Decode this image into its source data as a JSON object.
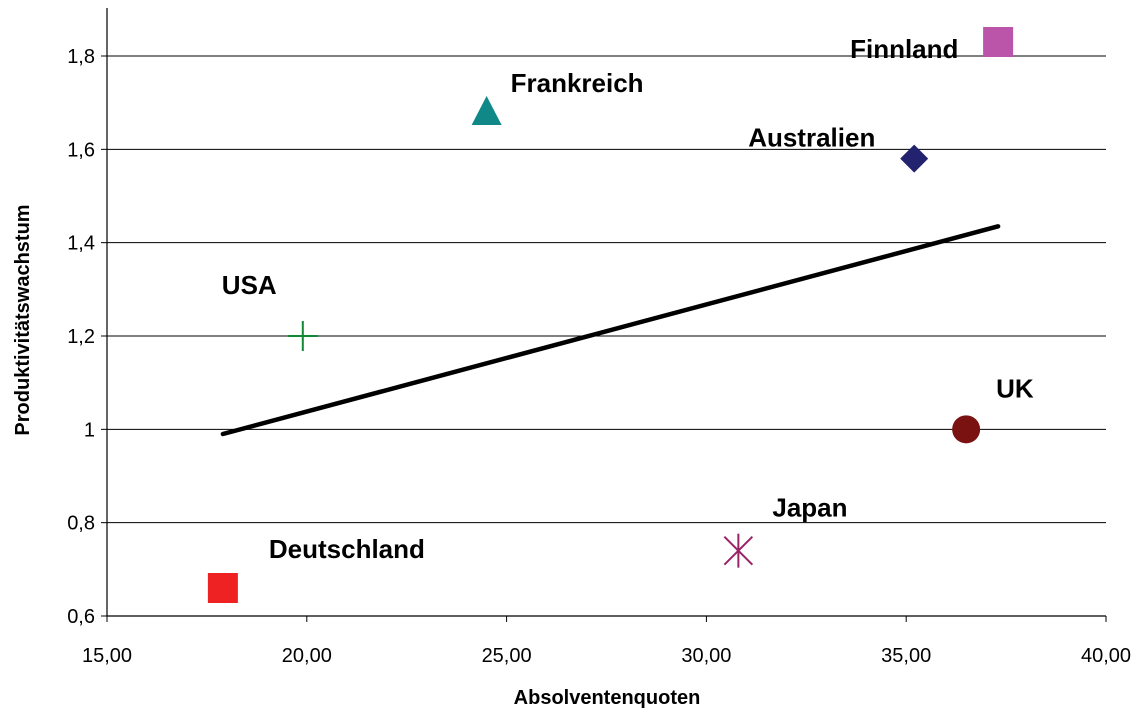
{
  "chart_data": {
    "type": "scatter",
    "title": "",
    "xlabel": "Absolventenquoten",
    "ylabel": "Produktivitätswachstum",
    "xlim": [
      15,
      40
    ],
    "ylim": [
      0.6,
      1.9
    ],
    "x_ticks": [
      15,
      20,
      25,
      30,
      35,
      40
    ],
    "x_tick_labels": [
      "15,00",
      "20,00",
      "25,00",
      "30,00",
      "35,00",
      "40,00"
    ],
    "y_ticks": [
      0.6,
      0.8,
      1.0,
      1.2,
      1.4,
      1.6,
      1.8
    ],
    "y_tick_labels": [
      "0,6",
      "0,8",
      "1",
      "1,2",
      "1,4",
      "1,6",
      "1,8"
    ],
    "grid": "horizontal",
    "legend": "none",
    "points": [
      {
        "label": "Finnland",
        "x": 37.3,
        "y": 1.83,
        "marker": "square",
        "color": "#bb55aa"
      },
      {
        "label": "Frankreich",
        "x": 24.5,
        "y": 1.68,
        "marker": "triangle",
        "color": "#118888"
      },
      {
        "label": "Australien",
        "x": 35.2,
        "y": 1.58,
        "marker": "diamond",
        "color": "#22226e"
      },
      {
        "label": "USA",
        "x": 19.9,
        "y": 1.2,
        "marker": "plus",
        "color": "#118833"
      },
      {
        "label": "UK",
        "x": 36.5,
        "y": 1.0,
        "marker": "circle",
        "color": "#7a1212"
      },
      {
        "label": "Japan",
        "x": 30.8,
        "y": 0.74,
        "marker": "asterisk",
        "color": "#992266"
      },
      {
        "label": "Deutschland",
        "x": 17.9,
        "y": 0.66,
        "marker": "square",
        "color": "#ee2222"
      }
    ],
    "trendline": {
      "x": [
        17.9,
        37.3
      ],
      "y": [
        0.99,
        1.435
      ],
      "color": "#000000"
    }
  }
}
